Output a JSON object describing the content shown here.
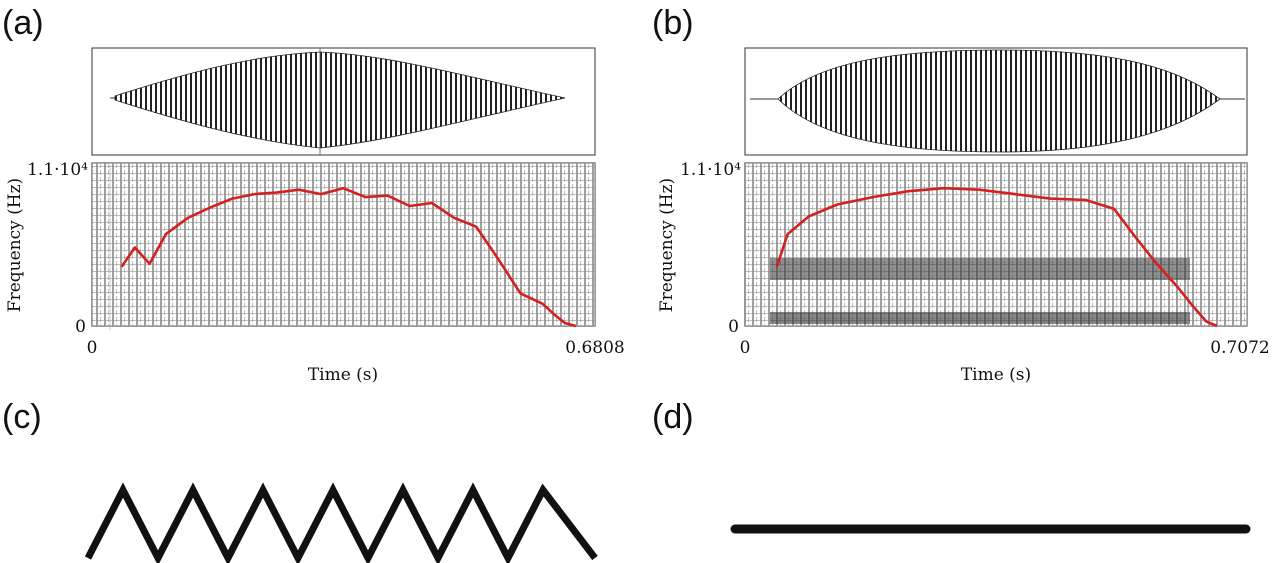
{
  "panels": {
    "a": {
      "label": "(a)"
    },
    "b": {
      "label": "(b)"
    },
    "c": {
      "label": "(c)"
    },
    "d": {
      "label": "(d)"
    }
  },
  "chart_data": [
    {
      "type": "line",
      "panel": "(a)",
      "xlabel": "Time (s)",
      "ylabel": "Frequency (Hz)",
      "ytop_label": "1.1·10⁴",
      "ybottom_label": "0",
      "xstart_label": "0",
      "xend_label": "0.6808",
      "xlim": [
        0,
        0.6808
      ],
      "ylim": [
        0,
        11000
      ],
      "line_color": "#d42020",
      "series": [
        {
          "x": [
            0.04,
            0.058,
            0.078,
            0.1,
            0.13,
            0.16,
            0.19,
            0.22,
            0.25,
            0.28,
            0.31,
            0.34,
            0.37,
            0.4,
            0.43,
            0.46,
            0.49,
            0.52,
            0.55,
            0.58,
            0.61,
            0.625,
            0.64,
            0.655
          ],
          "y": [
            4000,
            5300,
            4200,
            6200,
            7300,
            8000,
            8600,
            8900,
            9000,
            9200,
            8900,
            9300,
            8700,
            8800,
            8100,
            8300,
            7300,
            6700,
            4500,
            2200,
            1500,
            800,
            200,
            0
          ]
        }
      ]
    },
    {
      "type": "line",
      "panel": "(b)",
      "xlabel": "Time (s)",
      "ylabel": "Frequency (Hz)",
      "ytop_label": "1.1·10⁴",
      "ybottom_label": "0",
      "xstart_label": "0",
      "xend_label": "0.7072",
      "xlim": [
        0,
        0.7072
      ],
      "ylim": [
        0,
        11000
      ],
      "line_color": "#d42020",
      "series": [
        {
          "x": [
            0.045,
            0.06,
            0.09,
            0.13,
            0.18,
            0.23,
            0.28,
            0.33,
            0.38,
            0.43,
            0.48,
            0.52,
            0.55,
            0.58,
            0.61,
            0.63,
            0.65,
            0.665
          ],
          "y": [
            4000,
            6200,
            7400,
            8200,
            8700,
            9100,
            9300,
            9200,
            8900,
            8600,
            8500,
            7900,
            6000,
            4200,
            2600,
            1400,
            300,
            0
          ]
        }
      ]
    }
  ],
  "diagrams": {
    "c": {
      "shape": "zigzag",
      "peaks": 7
    },
    "d": {
      "shape": "flat line"
    }
  }
}
